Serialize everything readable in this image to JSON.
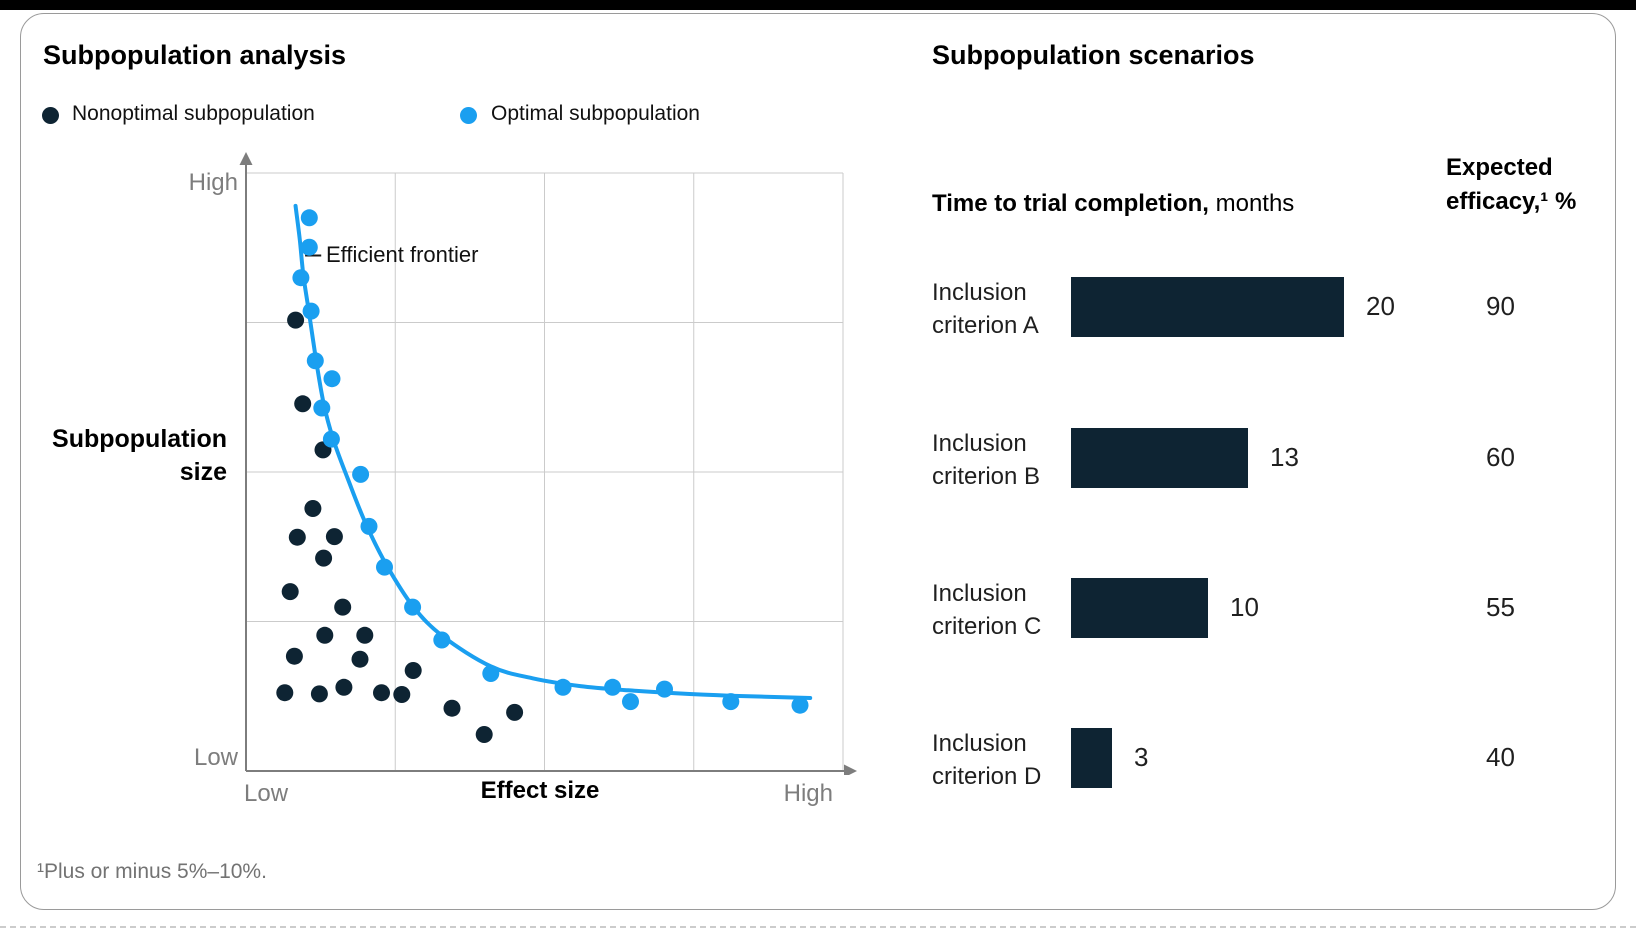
{
  "colors": {
    "navy": "#0e2433",
    "blue": "#1a9ff0",
    "gridline": "#cbcbcb",
    "axis": "#7d7d7d",
    "top_bar": "#000000"
  },
  "footnote": "¹Plus or minus 5%–10%.",
  "chart_data": [
    {
      "type": "scatter",
      "title": "Subpopulation analysis",
      "xlabel": "Effect size",
      "ylabel": "Subpopulation size",
      "x_ticks": [
        "Low",
        "High"
      ],
      "y_ticks": [
        "Low",
        "High"
      ],
      "axis_range": {
        "x": [
          0,
          100
        ],
        "y": [
          0,
          100
        ]
      },
      "grid": true,
      "frontier_label": {
        "text": "Efficient frontier",
        "x": 13.4,
        "y": 86.2,
        "dash_x1": 9.9,
        "dash_x2": 12.6
      },
      "series": [
        {
          "name": "Nonoptimal subpopulation",
          "color": "#0e2433",
          "points": [
            [
              8.3,
              75.4
            ],
            [
              9.5,
              61.4
            ],
            [
              12.9,
              53.7
            ],
            [
              11.2,
              43.9
            ],
            [
              8.6,
              39.1
            ],
            [
              14.8,
              39.2
            ],
            [
              13.0,
              35.6
            ],
            [
              7.4,
              30.0
            ],
            [
              16.2,
              27.4
            ],
            [
              13.2,
              22.7
            ],
            [
              19.9,
              22.7
            ],
            [
              8.1,
              19.2
            ],
            [
              19.1,
              18.7
            ],
            [
              28.0,
              16.8
            ],
            [
              6.5,
              13.1
            ],
            [
              12.3,
              12.9
            ],
            [
              16.4,
              14.0
            ],
            [
              22.7,
              13.1
            ],
            [
              26.1,
              12.8
            ],
            [
              34.5,
              10.5
            ],
            [
              45.0,
              9.8
            ],
            [
              39.9,
              6.1
            ]
          ]
        },
        {
          "name": "Optimal subpopulation",
          "color": "#1a9ff0",
          "points": [
            [
              10.6,
              92.5
            ],
            [
              10.6,
              87.6
            ],
            [
              9.2,
              82.5
            ],
            [
              10.9,
              76.9
            ],
            [
              11.6,
              68.6
            ],
            [
              14.4,
              65.6
            ],
            [
              12.7,
              60.7
            ],
            [
              14.3,
              55.5
            ],
            [
              19.2,
              49.6
            ],
            [
              20.6,
              40.9
            ],
            [
              23.2,
              34.1
            ],
            [
              27.9,
              27.4
            ],
            [
              32.8,
              21.9
            ],
            [
              41.0,
              16.3
            ],
            [
              53.1,
              14.0
            ],
            [
              61.4,
              14.0
            ],
            [
              64.4,
              11.6
            ],
            [
              70.1,
              13.7
            ],
            [
              81.2,
              11.6
            ],
            [
              92.8,
              11.0
            ]
          ]
        }
      ],
      "curve": {
        "name": "Efficient frontier",
        "color": "#1a9ff0",
        "points": [
          [
            8.3,
            94.5
          ],
          [
            9.0,
            89.0
          ],
          [
            9.6,
            83.0
          ],
          [
            10.5,
            77.0
          ],
          [
            11.7,
            69.0
          ],
          [
            13.0,
            61.5
          ],
          [
            14.6,
            55.5
          ],
          [
            17.0,
            49.0
          ],
          [
            20.0,
            41.5
          ],
          [
            23.5,
            34.5
          ],
          [
            28.0,
            27.5
          ],
          [
            33.0,
            22.5
          ],
          [
            41.0,
            17.5
          ],
          [
            48.0,
            15.5
          ],
          [
            56.0,
            14.2
          ],
          [
            64.0,
            13.5
          ],
          [
            72.0,
            13.0
          ],
          [
            81.0,
            12.6
          ],
          [
            94.5,
            12.2
          ]
        ]
      }
    },
    {
      "type": "bar",
      "title": "Subpopulation scenarios",
      "headers": {
        "col1_bold": "Time to trial completion,",
        "col1_unit": " months",
        "col2_line1": "Expected",
        "col2_line2_bold": "efficacy,¹",
        "col2_line2_unit": " %"
      },
      "categories": [
        "Inclusion criterion A",
        "Inclusion criterion B",
        "Inclusion criterion C",
        "Inclusion criterion D"
      ],
      "series": [
        {
          "name": "Time to trial completion, months",
          "values": [
            20,
            13,
            10,
            3
          ]
        },
        {
          "name": "Expected efficacy, %",
          "values": [
            90,
            60,
            55,
            40
          ]
        }
      ],
      "xlim": [
        0,
        20
      ],
      "bar_color": "#0e2433"
    }
  ]
}
